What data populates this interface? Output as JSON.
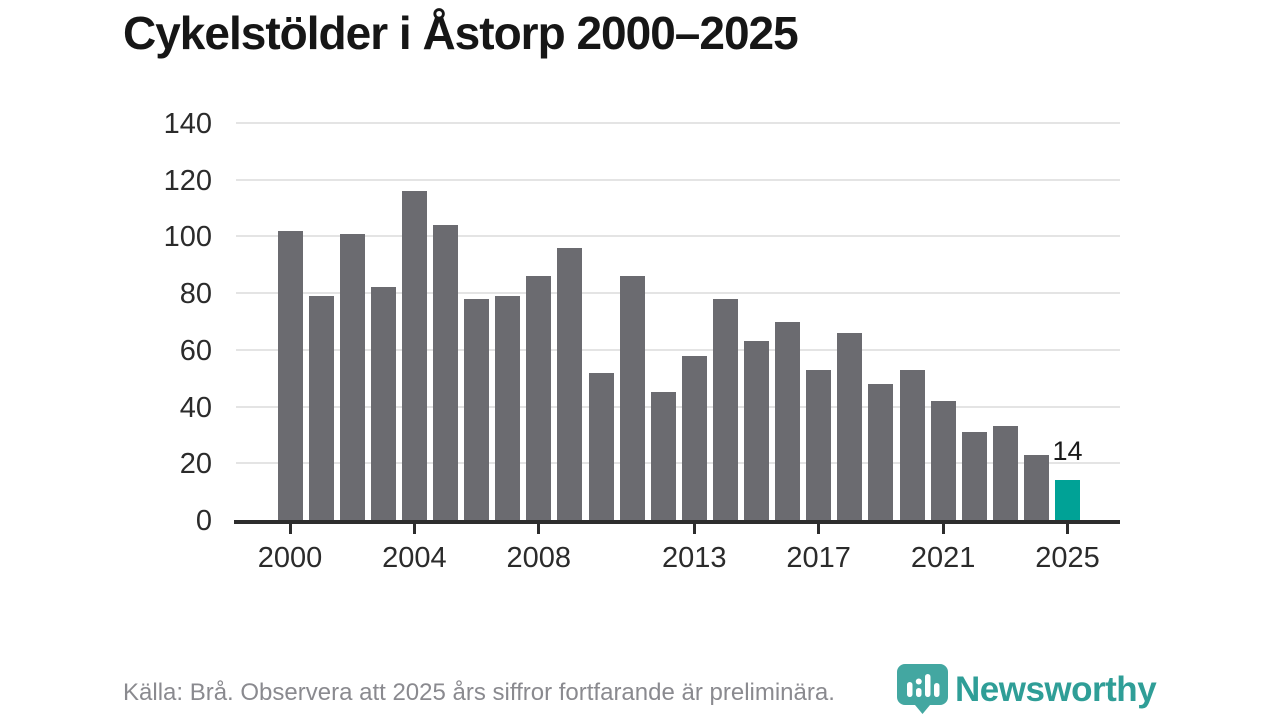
{
  "header": {
    "title": "Cykelstölder i Åstorp 2000–2025"
  },
  "chart_data": {
    "type": "bar",
    "title": "Cykelstölder i Åstorp 2000–2025",
    "categories": [
      2000,
      2001,
      2002,
      2003,
      2004,
      2005,
      2006,
      2007,
      2008,
      2009,
      2010,
      2011,
      2012,
      2013,
      2014,
      2015,
      2016,
      2017,
      2018,
      2019,
      2020,
      2021,
      2022,
      2023,
      2024,
      2025
    ],
    "values": [
      102,
      79,
      101,
      82,
      116,
      104,
      78,
      79,
      86,
      96,
      52,
      86,
      45,
      58,
      78,
      63,
      70,
      53,
      66,
      48,
      53,
      42,
      31,
      33,
      23,
      14
    ],
    "xlabel": "",
    "ylabel": "",
    "ylim": [
      0,
      140
    ],
    "yticks": [
      0,
      20,
      40,
      60,
      80,
      100,
      120,
      140
    ],
    "xticks": [
      2000,
      2004,
      2008,
      2013,
      2017,
      2021,
      2025
    ],
    "grid": "horizontal",
    "legend": "none",
    "highlight": {
      "index": 25,
      "year": 2025,
      "value": 14,
      "label": "14"
    },
    "colors": {
      "bar": "#6b6b70",
      "highlight_bar": "#00a296",
      "gridline": "#e4e4e4",
      "axis": "#2d2d2d",
      "tick_label": "#2b2b2b"
    }
  },
  "footer": {
    "source_note": "Källa: Brå. Observera att 2025 års siffror fortfarande är preliminära.",
    "logo": {
      "text": "Newsworthy",
      "color": "#2f9e97",
      "icon": "newsworthy-speech-bubble-bar-chart-icon"
    }
  }
}
